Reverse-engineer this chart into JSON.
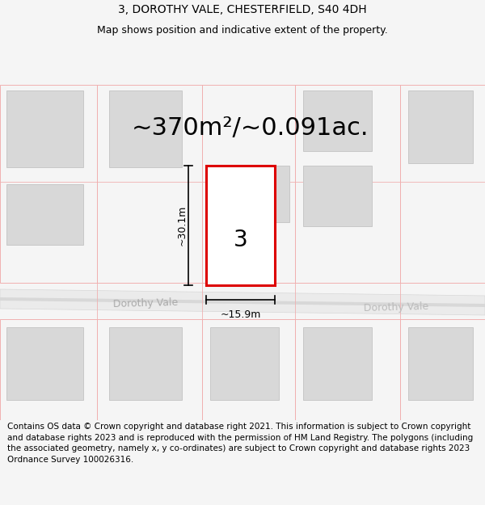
{
  "title": "3, DOROTHY VALE, CHESTERFIELD, S40 4DH",
  "subtitle": "Map shows position and indicative extent of the property.",
  "area_text": "~370m²/~0.091ac.",
  "number_label": "3",
  "width_label": "~15.9m",
  "height_label": "~30.1m",
  "street_label": "Dorothy Vale",
  "street_label2": "Dorothy Vale",
  "footer_text": "Contains OS data © Crown copyright and database right 2021. This information is subject to Crown copyright and database rights 2023 and is reproduced with the permission of HM Land Registry. The polygons (including the associated geometry, namely x, y co-ordinates) are subject to Crown copyright and database rights 2023 Ordnance Survey 100026316.",
  "bg_color": "#f5f5f5",
  "map_bg": "#ffffff",
  "road_color": "#e8e8e8",
  "plot_outline_color": "#f0b0b0",
  "building_color": "#d8d8d8",
  "building_edge": "#c8c8c8",
  "red_color": "#dd0000",
  "title_fontsize": 10,
  "subtitle_fontsize": 9,
  "area_fontsize": 22,
  "footer_fontsize": 7.5,
  "label_fontsize": 9,
  "street_fontsize": 9
}
